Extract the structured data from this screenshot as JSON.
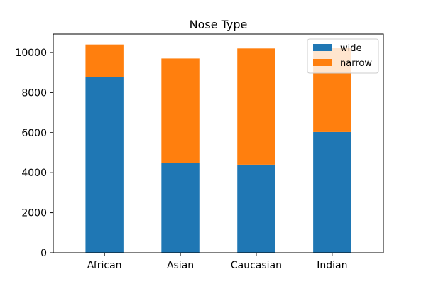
{
  "chart_data": {
    "type": "bar",
    "stacked": true,
    "title": "Nose Type",
    "xlabel": "",
    "ylabel": "",
    "categories": [
      "African",
      "Asian",
      "Caucasian",
      "Indian"
    ],
    "series": [
      {
        "name": "wide",
        "color": "#1f77b4",
        "values": [
          8780,
          4500,
          4400,
          6030
        ]
      },
      {
        "name": "narrow",
        "color": "#ff7f0e",
        "values": [
          1620,
          5200,
          5800,
          4200
        ]
      }
    ],
    "ylim": [
      0,
      10920
    ],
    "yticks": [
      0,
      2000,
      4000,
      6000,
      8000,
      10000
    ],
    "grid": false,
    "legend_position": "top-right"
  }
}
